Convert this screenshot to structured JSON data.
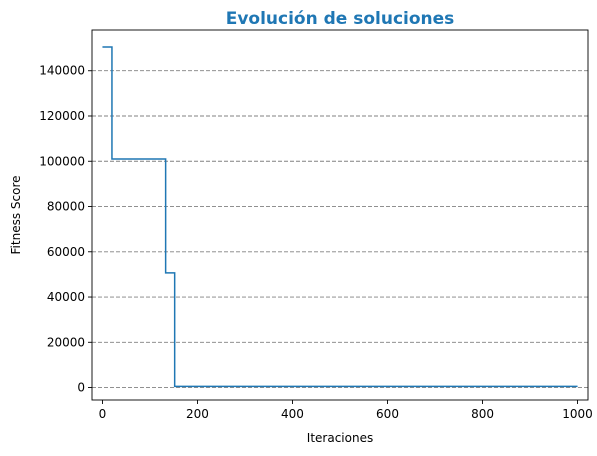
{
  "chart_data": {
    "type": "line",
    "title": "Evolución de soluciones",
    "xlabel": "Iteraciones",
    "ylabel": "Fitness Score",
    "xlim": [
      -22,
      1022
    ],
    "ylim": [
      -5500,
      158000
    ],
    "xticks": [
      0,
      200,
      400,
      600,
      800,
      1000
    ],
    "yticks": [
      0,
      20000,
      40000,
      60000,
      80000,
      100000,
      120000,
      140000
    ],
    "grid": {
      "axis": "y",
      "style": "dashed"
    },
    "line_style": "steps-post",
    "colors": {
      "title": "#1f77b4",
      "line": "#1f77b4",
      "grid": "#808080",
      "axes": "#000000"
    },
    "series": [
      {
        "x": [
          0,
          20,
          133,
          152,
          1000
        ],
        "y": [
          150500,
          101000,
          50700,
          500,
          500
        ]
      }
    ]
  }
}
